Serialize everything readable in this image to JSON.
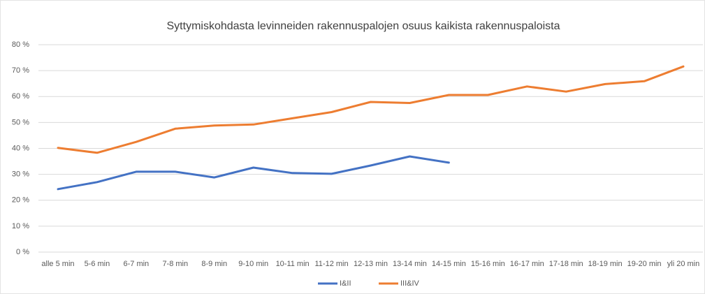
{
  "chart_data": {
    "type": "line",
    "title": "Syttymiskohdasta levinneiden rakennuspalojen osuus kaikista rakennuspaloista",
    "categories": [
      "alle 5 min",
      "5-6 min",
      "6-7 min",
      "7-8 min",
      "8-9 min",
      "9-10 min",
      "10-11 min",
      "11-12 min",
      "12-13 min",
      "13-14 min",
      "14-15 min",
      "15-16 min",
      "16-17 min",
      "17-18 min",
      "18-19 min",
      "19-20 min",
      "yli 20 min"
    ],
    "series": [
      {
        "name": "I&II",
        "color": "#4472c4",
        "values": [
          24.3,
          27.0,
          31.0,
          31.0,
          28.8,
          32.6,
          30.5,
          30.2,
          33.4,
          36.9,
          34.5,
          null,
          null,
          null,
          null,
          null,
          null
        ]
      },
      {
        "name": "III&IV",
        "color": "#ed7d31",
        "values": [
          40.2,
          38.3,
          42.5,
          47.6,
          48.8,
          49.2,
          51.6,
          54.0,
          57.9,
          57.5,
          60.6,
          60.6,
          63.9,
          61.9,
          64.8,
          65.9,
          71.6
        ]
      }
    ],
    "ylim": [
      0,
      80
    ],
    "yticks": [
      {
        "value": 0,
        "label": "0 %"
      },
      {
        "value": 10,
        "label": "10 %"
      },
      {
        "value": 20,
        "label": "20 %"
      },
      {
        "value": 30,
        "label": "30 %"
      },
      {
        "value": 40,
        "label": "40 %"
      },
      {
        "value": 50,
        "label": "50 %"
      },
      {
        "value": 60,
        "label": "60 %"
      },
      {
        "value": 70,
        "label": "70 %"
      },
      {
        "value": 80,
        "label": "80 %"
      }
    ],
    "grid": true,
    "legend": "bottom"
  }
}
